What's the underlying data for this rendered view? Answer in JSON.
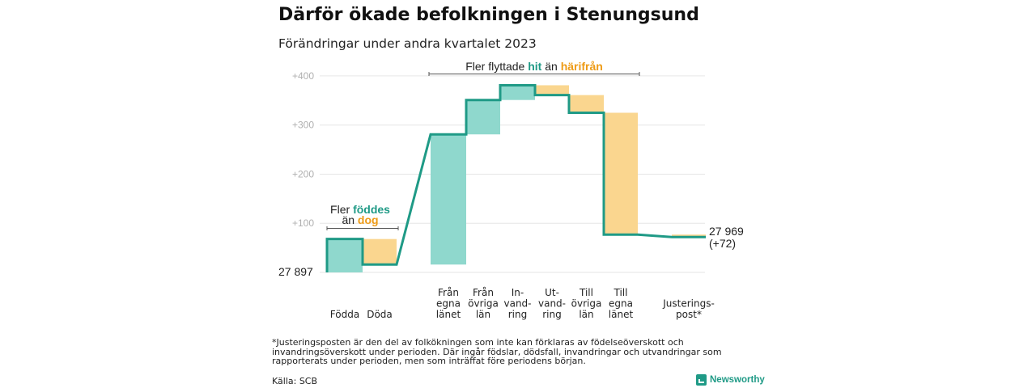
{
  "title": "Därför ökade befolkningen i Stenungsund",
  "subtitle": "Förändringar under andra kvartalet 2023",
  "colors": {
    "line": "#1f9a86",
    "increase": "#8fd8cd",
    "decrease": "#fad68f",
    "accent_teal": "#1f9a86",
    "accent_orange": "#ee9b16"
  },
  "chart_data": {
    "type": "waterfall",
    "start_label": "27  897",
    "end_label": "27 969",
    "end_change": "(+72)",
    "yticks": [
      "+100",
      "+200",
      "+300",
      "+400"
    ],
    "ytick_values": [
      100,
      200,
      300,
      400
    ],
    "ylim": [
      0,
      420
    ],
    "grid": true,
    "steps": [
      {
        "id": "fodda",
        "label": [
          "Födda"
        ],
        "value": 68,
        "from": 0,
        "to": 68
      },
      {
        "id": "doda",
        "label": [
          "Döda"
        ],
        "value": -52,
        "from": 68,
        "to": 16
      },
      {
        "id": "fran-egna-lanet",
        "label": [
          "Från",
          "egna",
          "länet"
        ],
        "value": 265,
        "from": 16,
        "to": 281
      },
      {
        "id": "fran-ovriga-lan",
        "label": [
          "Från",
          "övriga",
          "län"
        ],
        "value": 70,
        "from": 281,
        "to": 351
      },
      {
        "id": "invandring",
        "label": [
          "In-",
          "vand-",
          "ring"
        ],
        "value": 30,
        "from": 351,
        "to": 381
      },
      {
        "id": "utvandring",
        "label": [
          "Ut-",
          "vand-",
          "ring"
        ],
        "value": -20,
        "from": 381,
        "to": 361
      },
      {
        "id": "till-ovriga-lan",
        "label": [
          "Till",
          "övriga",
          "län"
        ],
        "value": -36,
        "from": 361,
        "to": 325
      },
      {
        "id": "till-egna-lanet",
        "label": [
          "Till",
          "egna",
          "länet"
        ],
        "value": -248,
        "from": 325,
        "to": 77
      },
      {
        "id": "justeringspost",
        "label": [
          "Justerings-",
          "post*"
        ],
        "value": -5,
        "from": 77,
        "to": 72
      }
    ],
    "annotations": {
      "births": {
        "line1": "Fler",
        "line1_bold": "föddes",
        "line2": "än",
        "line2_bold": "dog"
      },
      "migration": {
        "prefix": "Fler flyttade",
        "bold1": "hit",
        "middle": "än",
        "bold2": "härifrån"
      }
    }
  },
  "footnote": "*Justeringsposten är den del av folkökningen som inte kan förklaras av födelseöverskott och invandringsöverskott under perioden. Där ingår födslar, dödsfall, invandringar och utvandringar som rapporterats under perioden, men som inträffat före periodens början.",
  "source": "Källa: SCB",
  "brand": "Newsworthy"
}
